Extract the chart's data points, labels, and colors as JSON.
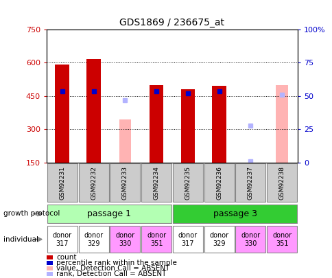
{
  "title": "GDS1869 / 236675_at",
  "samples": [
    "GSM92231",
    "GSM92232",
    "GSM92233",
    "GSM92234",
    "GSM92235",
    "GSM92236",
    "GSM92237",
    "GSM92238"
  ],
  "count_values": [
    590,
    615,
    null,
    500,
    480,
    495,
    null,
    null
  ],
  "absent_value_bars": [
    null,
    null,
    345,
    null,
    null,
    null,
    null,
    500
  ],
  "percentile_rank_left": [
    470,
    470,
    null,
    470,
    460,
    470,
    null,
    null
  ],
  "absent_rank_left": [
    null,
    null,
    430,
    null,
    null,
    null,
    315,
    455
  ],
  "absent_rank_tiny_left": [
    null,
    null,
    null,
    null,
    null,
    null,
    157,
    null
  ],
  "ylim_left": [
    150,
    750
  ],
  "ylim_right": [
    0,
    100
  ],
  "yticks_left": [
    150,
    300,
    450,
    600,
    750
  ],
  "yticks_right": [
    0,
    25,
    50,
    75,
    100
  ],
  "ytick_labels_right": [
    "0",
    "25",
    "50",
    "75",
    "100%"
  ],
  "passage1_color": "#b3ffb3",
  "passage3_color": "#33cc33",
  "individual_labels": [
    "donor\n317",
    "donor\n329",
    "donor\n330",
    "donor\n351",
    "donor\n317",
    "donor\n329",
    "donor\n330",
    "donor\n351"
  ],
  "individual_colors": [
    "#ffffff",
    "#ffffff",
    "#ff99ff",
    "#ff99ff",
    "#ffffff",
    "#ffffff",
    "#ff99ff",
    "#ff99ff"
  ],
  "color_count": "#cc0000",
  "color_rank": "#0000cc",
  "color_absent_value": "#ffb3b3",
  "color_absent_rank": "#b3b3ff",
  "bar_width": 0.45,
  "absent_bar_width": 0.38,
  "legend_items": [
    {
      "label": "count",
      "color": "#cc0000"
    },
    {
      "label": "percentile rank within the sample",
      "color": "#0000cc"
    },
    {
      "label": "value, Detection Call = ABSENT",
      "color": "#ffb3b3"
    },
    {
      "label": "rank, Detection Call = ABSENT",
      "color": "#b3b3ff"
    }
  ]
}
